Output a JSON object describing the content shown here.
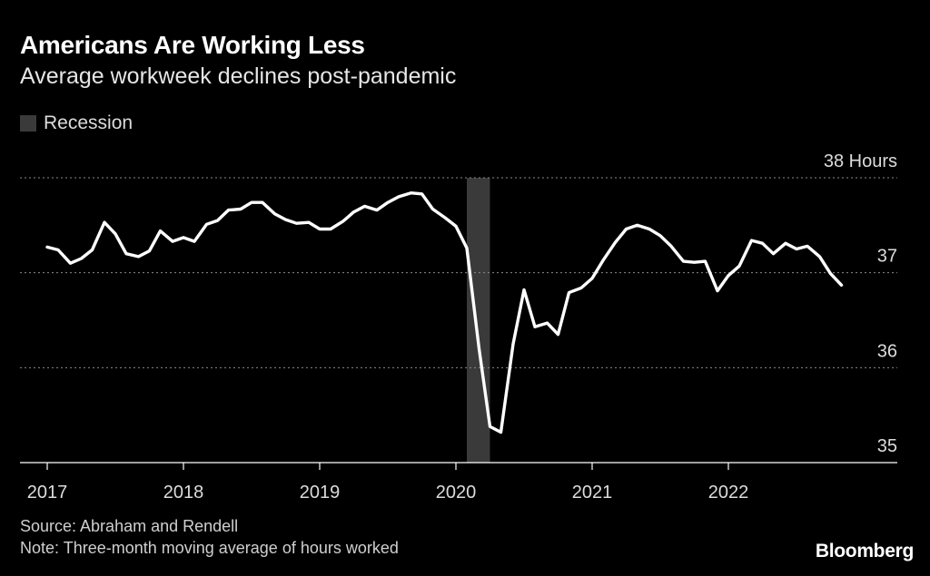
{
  "header": {
    "title": "Americans Are Working Less",
    "subtitle": "Average workweek declines post-pandemic"
  },
  "legend": {
    "recession_label": "Recession",
    "recession_color": "#3a3a3a"
  },
  "footer": {
    "source": "Source: Abraham and Rendell",
    "note": "Note: Three-month moving average of hours worked",
    "brand": "Bloomberg"
  },
  "chart_data": {
    "type": "line",
    "title": "Americans Are Working Less",
    "subtitle": "Average workweek declines post-pandemic",
    "ylabel": "Hours",
    "ylim": [
      35,
      38
    ],
    "yticks": [
      35,
      36,
      37,
      38
    ],
    "ytick_labels": [
      "35",
      "36",
      "37",
      "38 Hours"
    ],
    "xlim": [
      2017.0,
      2023.25
    ],
    "xticks": [
      2017,
      2018,
      2019,
      2020,
      2021,
      2022
    ],
    "xtick_labels": [
      "2017",
      "2018",
      "2019",
      "2020",
      "2021",
      "2022"
    ],
    "grid": "horizontal-dotted",
    "line_color": "#ffffff",
    "recession": {
      "start": 2020.08,
      "end": 2020.25,
      "label": "Recession"
    },
    "series": [
      {
        "values": [
          [
            2017.0,
            37.27
          ],
          [
            2017.08,
            37.24
          ],
          [
            2017.17,
            37.1
          ],
          [
            2017.25,
            37.15
          ],
          [
            2017.33,
            37.24
          ],
          [
            2017.42,
            37.53
          ],
          [
            2017.5,
            37.41
          ],
          [
            2017.58,
            37.2
          ],
          [
            2017.67,
            37.17
          ],
          [
            2017.75,
            37.23
          ],
          [
            2017.83,
            37.44
          ],
          [
            2017.92,
            37.33
          ],
          [
            2018.0,
            37.37
          ],
          [
            2018.08,
            37.33
          ],
          [
            2018.17,
            37.51
          ],
          [
            2018.25,
            37.55
          ],
          [
            2018.33,
            37.66
          ],
          [
            2018.42,
            37.67
          ],
          [
            2018.5,
            37.74
          ],
          [
            2018.58,
            37.74
          ],
          [
            2018.67,
            37.62
          ],
          [
            2018.75,
            37.56
          ],
          [
            2018.83,
            37.52
          ],
          [
            2018.92,
            37.53
          ],
          [
            2019.0,
            37.46
          ],
          [
            2019.08,
            37.46
          ],
          [
            2019.17,
            37.54
          ],
          [
            2019.25,
            37.64
          ],
          [
            2019.33,
            37.7
          ],
          [
            2019.42,
            37.66
          ],
          [
            2019.5,
            37.74
          ],
          [
            2019.58,
            37.8
          ],
          [
            2019.67,
            37.84
          ],
          [
            2019.75,
            37.83
          ],
          [
            2019.83,
            37.67
          ],
          [
            2019.92,
            37.58
          ],
          [
            2020.0,
            37.49
          ],
          [
            2020.08,
            37.26
          ],
          [
            2020.17,
            36.2
          ],
          [
            2020.25,
            35.38
          ],
          [
            2020.33,
            35.32
          ],
          [
            2020.42,
            36.25
          ],
          [
            2020.5,
            36.82
          ],
          [
            2020.58,
            36.43
          ],
          [
            2020.67,
            36.47
          ],
          [
            2020.75,
            36.35
          ],
          [
            2020.83,
            36.79
          ],
          [
            2020.92,
            36.84
          ],
          [
            2021.0,
            36.94
          ],
          [
            2021.08,
            37.13
          ],
          [
            2021.17,
            37.32
          ],
          [
            2021.25,
            37.46
          ],
          [
            2021.33,
            37.5
          ],
          [
            2021.42,
            37.46
          ],
          [
            2021.5,
            37.39
          ],
          [
            2021.58,
            37.28
          ],
          [
            2021.67,
            37.12
          ],
          [
            2021.75,
            37.11
          ],
          [
            2021.83,
            37.12
          ],
          [
            2021.92,
            36.81
          ],
          [
            2022.0,
            36.97
          ],
          [
            2022.08,
            37.07
          ],
          [
            2022.17,
            37.34
          ],
          [
            2022.25,
            37.31
          ],
          [
            2022.33,
            37.2
          ],
          [
            2022.42,
            37.31
          ],
          [
            2022.5,
            37.25
          ],
          [
            2022.58,
            37.28
          ],
          [
            2022.67,
            37.17
          ],
          [
            2022.75,
            36.99
          ],
          [
            2022.83,
            36.87
          ]
        ]
      }
    ]
  }
}
